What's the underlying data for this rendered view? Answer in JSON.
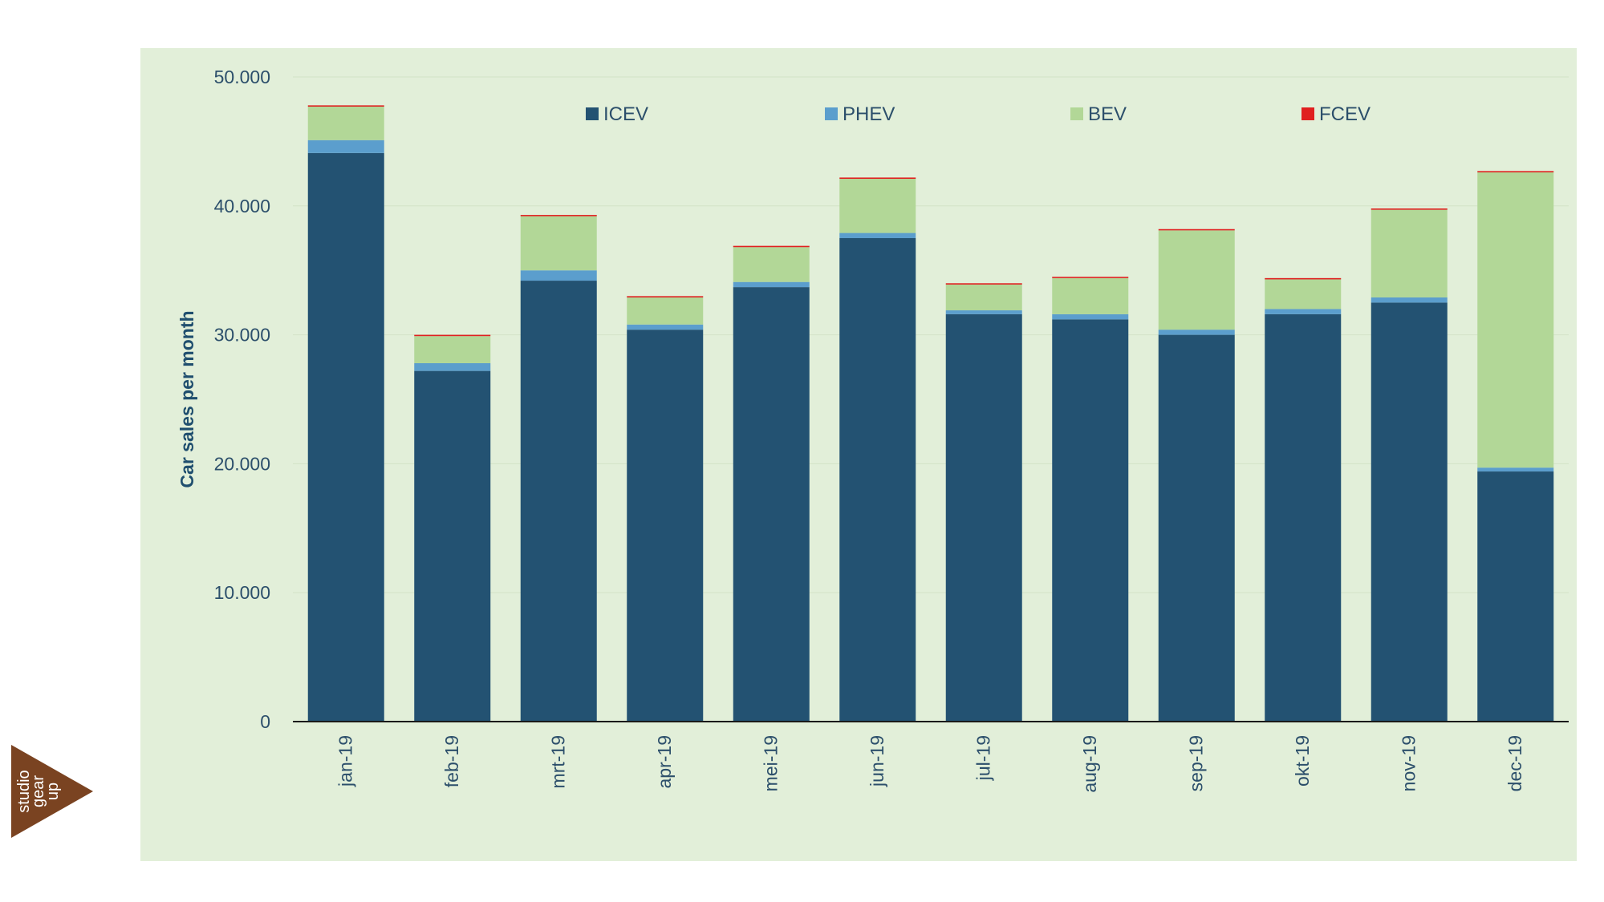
{
  "chart_data": {
    "type": "bar",
    "stacked": true,
    "title": "",
    "xlabel": "",
    "ylabel": "Car sales per month",
    "ylim": [
      0,
      50000
    ],
    "yticks": [
      0,
      10000,
      20000,
      30000,
      40000,
      50000
    ],
    "ytick_labels": [
      "0",
      "10.000",
      "20.000",
      "30.000",
      "40.000",
      "50.000"
    ],
    "grid": true,
    "legend_position": "top",
    "categories": [
      "jan-19",
      "feb-19",
      "mrt-19",
      "apr-19",
      "mei-19",
      "jun-19",
      "jul-19",
      "aug-19",
      "sep-19",
      "okt-19",
      "nov-19",
      "dec-19"
    ],
    "series": [
      {
        "name": "ICEV",
        "color": "#235272",
        "values": [
          44100,
          27200,
          34200,
          30400,
          33700,
          37500,
          31600,
          31200,
          30000,
          31600,
          32500,
          19400
        ]
      },
      {
        "name": "PHEV",
        "color": "#5b9ecd",
        "values": [
          1000,
          600,
          800,
          400,
          400,
          400,
          300,
          400,
          400,
          400,
          400,
          300
        ]
      },
      {
        "name": "BEV",
        "color": "#b2d797",
        "values": [
          2600,
          2100,
          4200,
          2100,
          2700,
          4200,
          2000,
          2800,
          7700,
          2300,
          6800,
          22900
        ]
      },
      {
        "name": "FCEV",
        "color": "#e02020",
        "values": [
          100,
          100,
          100,
          100,
          100,
          100,
          100,
          100,
          100,
          100,
          100,
          100
        ]
      }
    ]
  },
  "colors": {
    "plot_background": "#e2efd9",
    "axis_text": "#2c4f6b",
    "gridline": "#d3e3c7",
    "logo": "#7a4321"
  },
  "logo": {
    "icon": "studio-gear-up-logo-icon",
    "lines": [
      "studio",
      "gear",
      "up"
    ]
  }
}
